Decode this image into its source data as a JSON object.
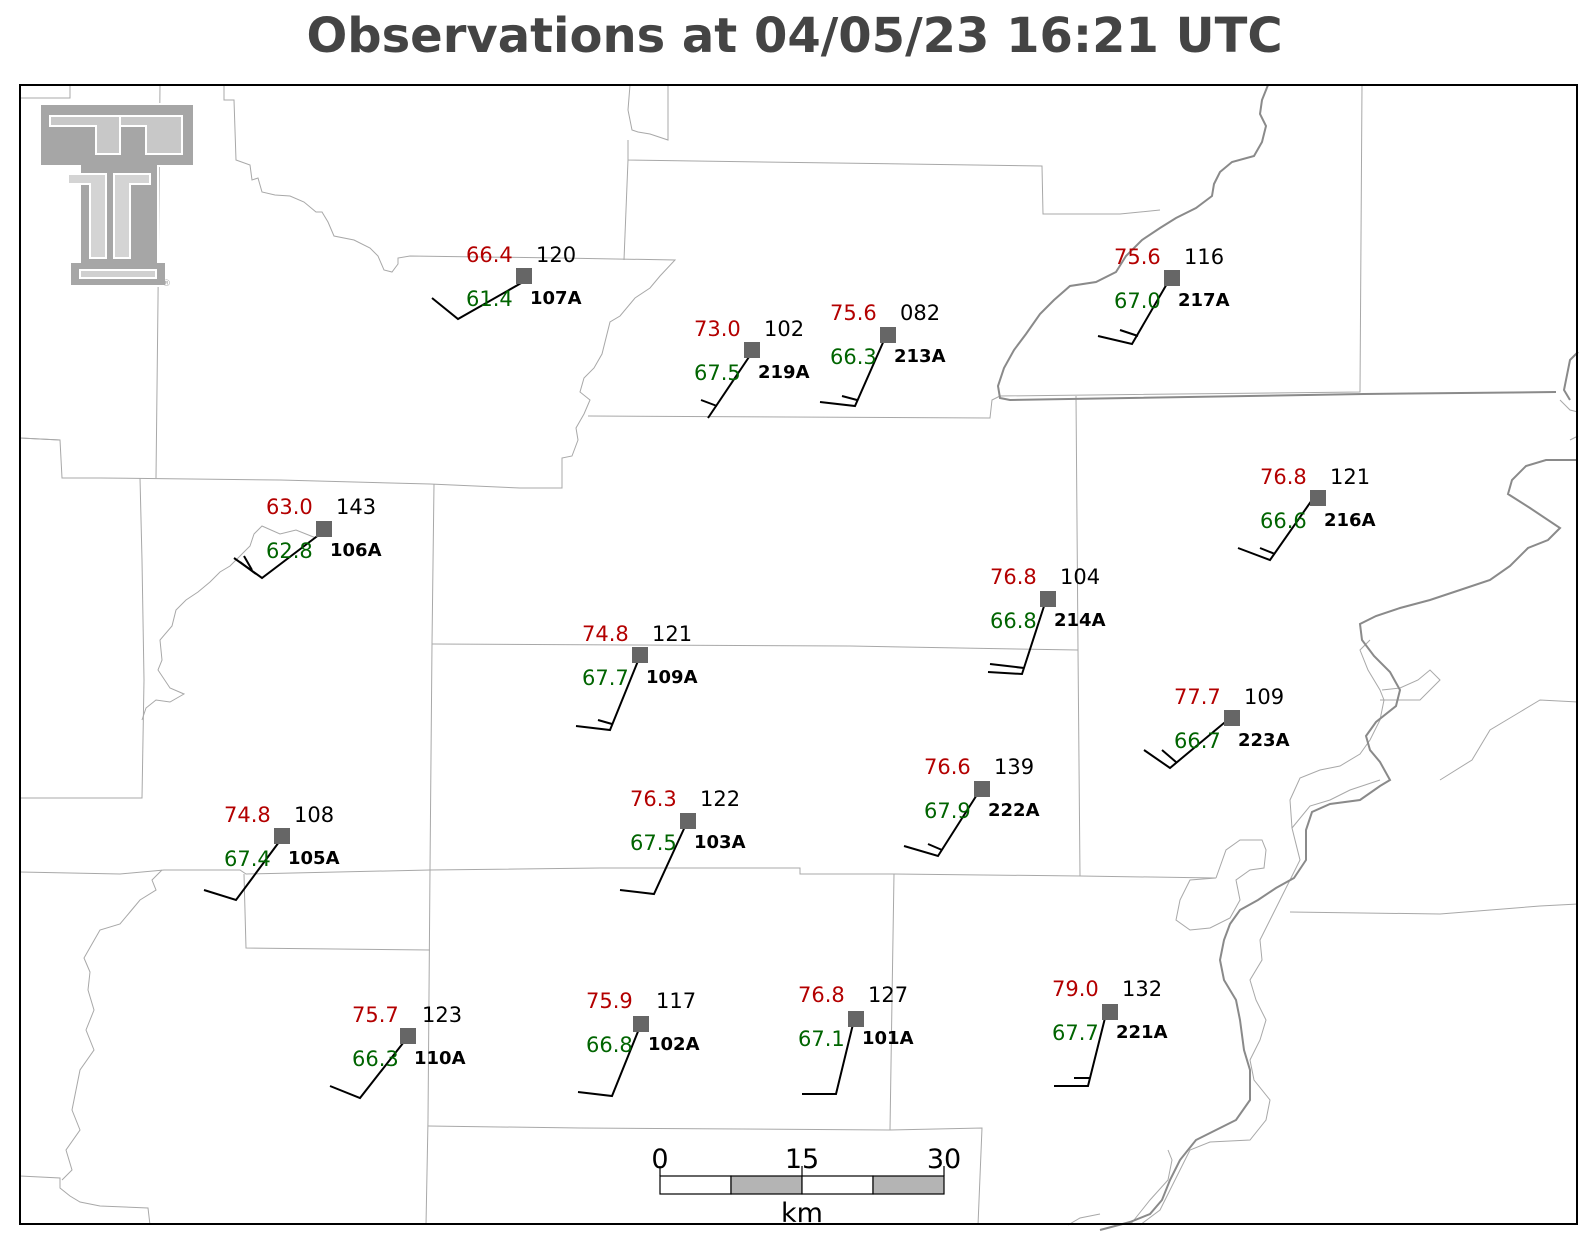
{
  "title": "Observations at 04/05/23 16:21 UTC",
  "colors": {
    "temperature": "#b30000",
    "dewpoint": "#006400",
    "station_marker": "#666666",
    "title": "#444444",
    "county_lines": "#999999",
    "state_lines": "#888888"
  },
  "logo": {
    "name": "texas-tech-double-t-logo",
    "registered_mark": "®"
  },
  "stations": [
    {
      "id": "107A",
      "temp": "66.4",
      "dewpoint": "61.4",
      "pressure": "120"
    },
    {
      "id": "219A",
      "temp": "73.0",
      "dewpoint": "67.5",
      "pressure": "102"
    },
    {
      "id": "213A",
      "temp": "75.6",
      "dewpoint": "66.3",
      "pressure": "082"
    },
    {
      "id": "217A",
      "temp": "75.6",
      "dewpoint": "67.0",
      "pressure": "116"
    },
    {
      "id": "216A",
      "temp": "76.8",
      "dewpoint": "66.6",
      "pressure": "121"
    },
    {
      "id": "106A",
      "temp": "63.0",
      "dewpoint": "62.8",
      "pressure": "143"
    },
    {
      "id": "214A",
      "temp": "76.8",
      "dewpoint": "66.8",
      "pressure": "104"
    },
    {
      "id": "109A",
      "temp": "74.8",
      "dewpoint": "67.7",
      "pressure": "121"
    },
    {
      "id": "223A",
      "temp": "77.7",
      "dewpoint": "66.7",
      "pressure": "109"
    },
    {
      "id": "222A",
      "temp": "76.6",
      "dewpoint": "67.9",
      "pressure": "139"
    },
    {
      "id": "103A",
      "temp": "76.3",
      "dewpoint": "67.5",
      "pressure": "122"
    },
    {
      "id": "105A",
      "temp": "74.8",
      "dewpoint": "67.4",
      "pressure": "108"
    },
    {
      "id": "110A",
      "temp": "75.7",
      "dewpoint": "66.3",
      "pressure": "123"
    },
    {
      "id": "102A",
      "temp": "75.9",
      "dewpoint": "66.8",
      "pressure": "117"
    },
    {
      "id": "101A",
      "temp": "76.8",
      "dewpoint": "67.1",
      "pressure": "127"
    },
    {
      "id": "221A",
      "temp": "79.0",
      "dewpoint": "67.7",
      "pressure": "132"
    }
  ],
  "scale_bar": {
    "ticks": [
      "0",
      "15",
      "30"
    ],
    "unit": "km"
  }
}
